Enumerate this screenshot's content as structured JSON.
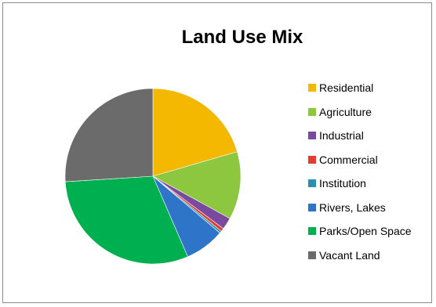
{
  "chart_data": {
    "type": "pie",
    "title": "Land Use Mix",
    "legend_position": "right",
    "slices": [
      {
        "label": "Residential",
        "value": 20.5,
        "color": "#F5B800"
      },
      {
        "label": "Agriculture",
        "value": 12.5,
        "color": "#8DC63F"
      },
      {
        "label": "Industrial",
        "value": 2.2,
        "color": "#7A4A9E"
      },
      {
        "label": "Commercial",
        "value": 0.6,
        "color": "#E03C31"
      },
      {
        "label": "Institution",
        "value": 0.4,
        "color": "#2A8FB0"
      },
      {
        "label": "Rivers, Lakes",
        "value": 7.3,
        "color": "#2E74C9"
      },
      {
        "label": "Parks/Open Space",
        "value": 30.5,
        "color": "#00B050"
      },
      {
        "label": "Vacant Land",
        "value": 26.0,
        "color": "#6B6B6B"
      }
    ]
  }
}
